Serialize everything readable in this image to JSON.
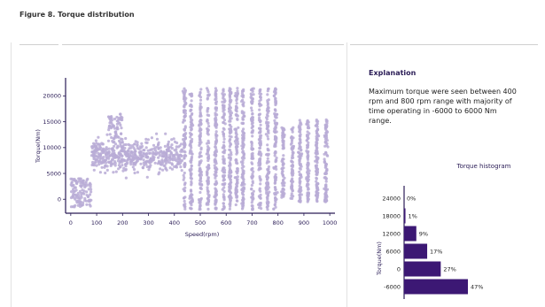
{
  "figure_title": "Figure 8. Torque distribution",
  "explanation": {
    "heading": "Explanation",
    "text": "Maximum torque were seen between 400 rpm and 800 rpm range with majority of time operating in -6000 to 6000 Nm range."
  },
  "colors": {
    "scatter": "#b9acd6",
    "histogram": "#3c1874",
    "axis": "#2a1c56"
  },
  "chart_data": [
    {
      "type": "scatter",
      "title": "",
      "xlabel": "Speed(rpm)",
      "ylabel": "Torque(Nm)",
      "xlim": [
        -20,
        1020
      ],
      "ylim": [
        -2700,
        23500
      ],
      "xticks": [
        0,
        100,
        200,
        300,
        400,
        500,
        600,
        700,
        800,
        900,
        1000
      ],
      "yticks": [
        0,
        5000,
        10000,
        15000,
        20000
      ],
      "point_count": 2600,
      "density_notes": "Sparse points 0-80 rpm near 0-3000 Nm; band 80-430 rpm between about 4000 and 12000 Nm; dense vertical columns 430-800 rpm spanning -2000 to 22000 Nm; columns near 880-1000 rpm from 0 to 15000 Nm."
    },
    {
      "type": "bar",
      "orientation": "horizontal",
      "title": "Torque histogram",
      "ylabel": "Torque(Nm)",
      "categories": [
        "24000",
        "18000",
        "12000",
        "6000",
        "0",
        "-6000"
      ],
      "values": [
        0,
        1,
        9,
        17,
        27,
        47
      ],
      "value_labels": [
        "0%",
        "1%",
        "9%",
        "17%",
        "27%",
        "47%"
      ],
      "xlim": [
        0,
        47
      ]
    }
  ]
}
